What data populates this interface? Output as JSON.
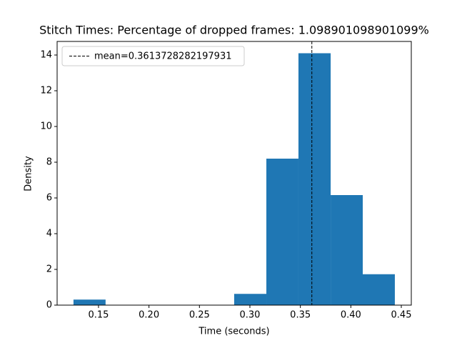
{
  "chart_data": {
    "type": "histogram",
    "title": "Stitch Times: Percentage of dropped frames: 1.098901098901099%",
    "x_label": "Time (seconds)",
    "y_label": "Density",
    "bins": [
      0.1252,
      0.157,
      0.1889,
      0.2207,
      0.2526,
      0.2844,
      0.3163,
      0.3481,
      0.38,
      0.4118,
      0.4436
    ],
    "values": [
      0.31,
      0,
      0,
      0,
      0,
      0.63,
      8.2,
      14.1,
      6.16,
      1.73
    ],
    "color": "#1f77b4",
    "mean_line": {
      "value": 0.3613728282197931,
      "label": "mean=0.3613728282197931",
      "color": "#000000"
    },
    "legend": "upper left",
    "grid": false,
    "xlim": [
      0.109,
      0.4599
    ],
    "ylim": [
      0,
      14.76
    ],
    "xticks": [
      0.15,
      {
        "value": 0.2,
        "label": "0.20"
      },
      0.25,
      {
        "value": 0.3,
        "label": "0.30"
      },
      0.35,
      {
        "value": 0.4,
        "label": "0.40"
      },
      0.45
    ],
    "yticks": [
      0,
      2,
      4,
      6,
      8,
      10,
      12,
      14
    ]
  }
}
